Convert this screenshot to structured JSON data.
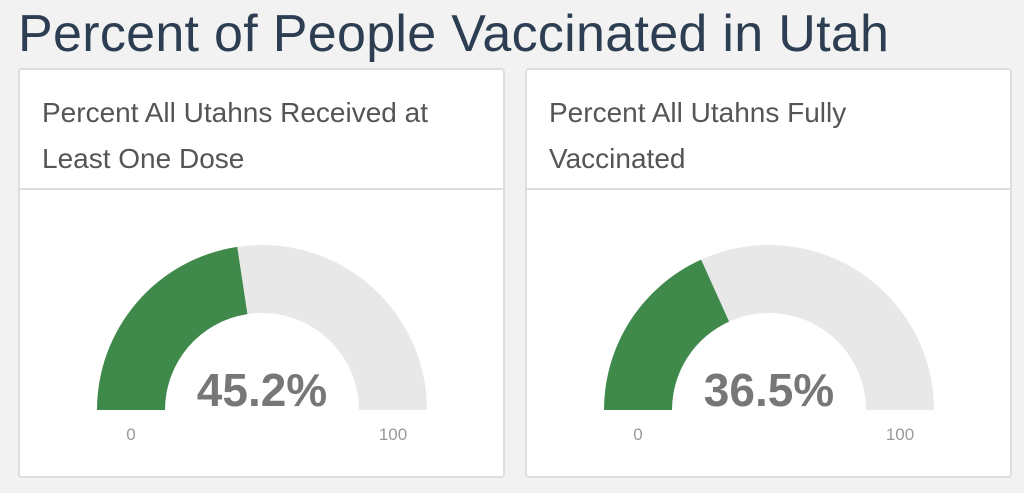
{
  "title": "Percent of People Vaccinated in Utah",
  "chart_data": [
    {
      "type": "gauge",
      "title": "Percent All Utahns Received at Least One Dose",
      "values": [
        45.2
      ],
      "value_labels": [
        "45.2%"
      ],
      "ylim": [
        0,
        100
      ],
      "yticks": [
        0,
        100
      ],
      "color": "#3f8a4b",
      "track_color": "#e8e8e8"
    },
    {
      "type": "gauge",
      "title": "Percent All Utahns Fully Vaccinated",
      "values": [
        36.5
      ],
      "value_labels": [
        "36.5%"
      ],
      "ylim": [
        0,
        100
      ],
      "yticks": [
        0,
        100
      ],
      "color": "#3f8a4b",
      "track_color": "#e8e8e8"
    }
  ]
}
